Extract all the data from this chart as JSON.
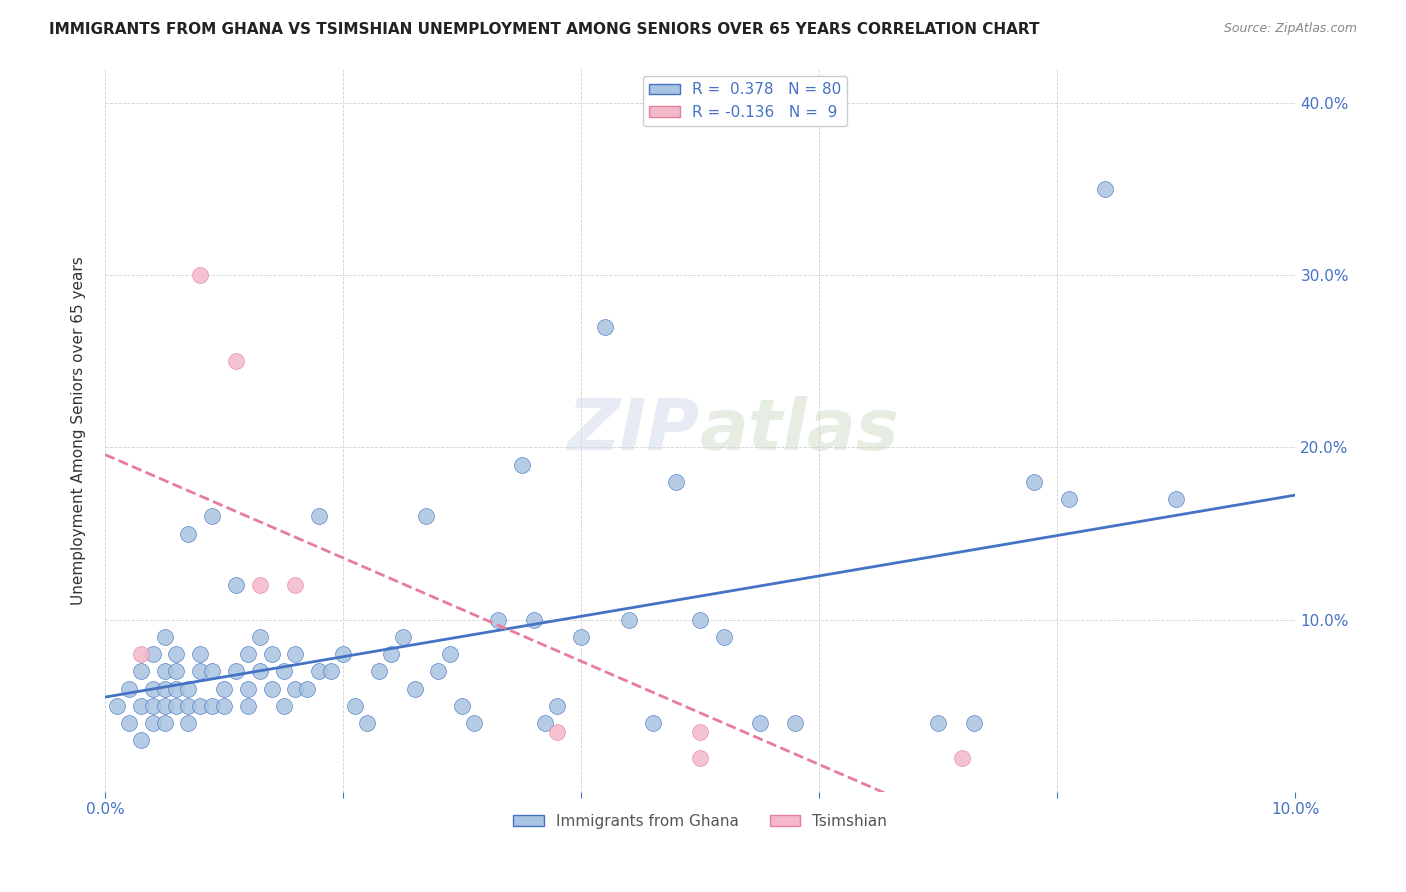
{
  "title": "IMMIGRANTS FROM GHANA VS TSIMSHIAN UNEMPLOYMENT AMONG SENIORS OVER 65 YEARS CORRELATION CHART",
  "source": "Source: ZipAtlas.com",
  "ylabel": "Unemployment Among Seniors over 65 years",
  "xlim": [
    0.0,
    0.1
  ],
  "ylim": [
    0.0,
    0.42
  ],
  "xticks": [
    0.0,
    0.02,
    0.04,
    0.06,
    0.08,
    0.1
  ],
  "yticks": [
    0.0,
    0.1,
    0.2,
    0.3,
    0.4
  ],
  "ghana_R": 0.378,
  "ghana_N": 80,
  "tsimshian_R": -0.136,
  "tsimshian_N": 9,
  "ghana_color": "#a8c4e0",
  "ghana_line_color": "#4472c4",
  "tsimshian_color": "#f4b8cb",
  "tsimshian_line_color": "#e87d9a",
  "watermark_zip": "ZIP",
  "watermark_atlas": "atlas",
  "ghana_scatter_x": [
    0.001,
    0.002,
    0.002,
    0.003,
    0.003,
    0.003,
    0.004,
    0.004,
    0.004,
    0.004,
    0.005,
    0.005,
    0.005,
    0.005,
    0.005,
    0.006,
    0.006,
    0.006,
    0.006,
    0.007,
    0.007,
    0.007,
    0.007,
    0.008,
    0.008,
    0.008,
    0.009,
    0.009,
    0.009,
    0.01,
    0.01,
    0.011,
    0.011,
    0.012,
    0.012,
    0.012,
    0.013,
    0.013,
    0.014,
    0.014,
    0.015,
    0.015,
    0.016,
    0.016,
    0.017,
    0.018,
    0.018,
    0.019,
    0.02,
    0.021,
    0.022,
    0.023,
    0.024,
    0.025,
    0.026,
    0.027,
    0.028,
    0.029,
    0.03,
    0.031,
    0.033,
    0.035,
    0.036,
    0.037,
    0.038,
    0.04,
    0.042,
    0.044,
    0.046,
    0.048,
    0.05,
    0.052,
    0.055,
    0.058,
    0.07,
    0.073,
    0.078,
    0.081,
    0.084,
    0.09
  ],
  "ghana_scatter_y": [
    0.05,
    0.04,
    0.06,
    0.03,
    0.05,
    0.07,
    0.04,
    0.05,
    0.06,
    0.08,
    0.04,
    0.05,
    0.06,
    0.07,
    0.09,
    0.05,
    0.06,
    0.07,
    0.08,
    0.04,
    0.05,
    0.06,
    0.15,
    0.05,
    0.07,
    0.08,
    0.05,
    0.07,
    0.16,
    0.05,
    0.06,
    0.07,
    0.12,
    0.05,
    0.06,
    0.08,
    0.07,
    0.09,
    0.06,
    0.08,
    0.05,
    0.07,
    0.06,
    0.08,
    0.06,
    0.07,
    0.16,
    0.07,
    0.08,
    0.05,
    0.04,
    0.07,
    0.08,
    0.09,
    0.06,
    0.16,
    0.07,
    0.08,
    0.05,
    0.04,
    0.1,
    0.19,
    0.1,
    0.04,
    0.05,
    0.09,
    0.27,
    0.1,
    0.04,
    0.18,
    0.1,
    0.09,
    0.04,
    0.04,
    0.04,
    0.04,
    0.18,
    0.17,
    0.35,
    0.17
  ],
  "tsimshian_scatter_x": [
    0.003,
    0.008,
    0.011,
    0.013,
    0.016,
    0.038,
    0.05,
    0.05,
    0.072
  ],
  "tsimshian_scatter_y": [
    0.08,
    0.3,
    0.25,
    0.12,
    0.12,
    0.035,
    0.035,
    0.02,
    0.02
  ]
}
